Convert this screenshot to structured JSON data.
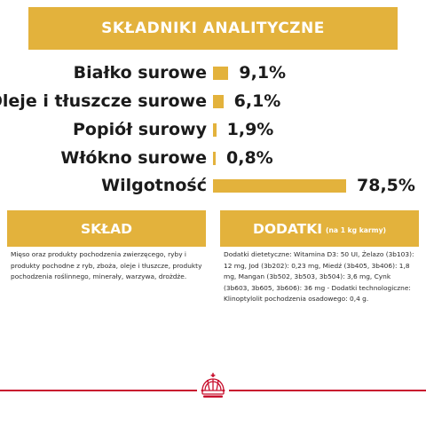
{
  "header": {
    "title": "SKŁADNIKI ANALITYCZNE"
  },
  "analytics": [
    {
      "label": "Białko surowe",
      "value": "9,1%",
      "percent": 9.1
    },
    {
      "label": "Oleje i tłuszcze surowe",
      "value": "6,1%",
      "percent": 6.1
    },
    {
      "label": "Popiół surowy",
      "value": "1,9%",
      "percent": 1.9
    },
    {
      "label": "Włókno surowe",
      "value": "0,8%",
      "percent": 0.8
    },
    {
      "label": "Wilgotność",
      "value": "78,5%",
      "percent": 78.5
    }
  ],
  "sklad": {
    "title": "SKŁAD",
    "text": "Mięso oraz produkty pochodzenia zwierzęcego, ryby i produkty pochodne z ryb, zboża, oleje i tłuszcze, produkty pochodzenia roślinnego, minerały, warzywa, drożdże."
  },
  "dodatki": {
    "title": "DODATKI",
    "subtitle": "(na 1 kg karmy)",
    "text": "Dodatki dietetyczne: Witamina D3: 50 UI, Żelazo (3b103): 12 mg, Jod (3b202): 0,23 mg, Miedź (3b405, 3b406): 1,8 mg, Mangan (3b502, 3b503, 3b504): 3,6 mg, Cynk (3b603, 3b605, 3b606): 36 mg - Dodatki technologiczne: Klinoptylolit pochodzenia osadowego: 0,4 g."
  },
  "colors": {
    "accent": "#e3b23c",
    "brand_red": "#c8102e",
    "text": "#1b1b1b"
  },
  "logo": {
    "name": "crown-logo-icon"
  }
}
